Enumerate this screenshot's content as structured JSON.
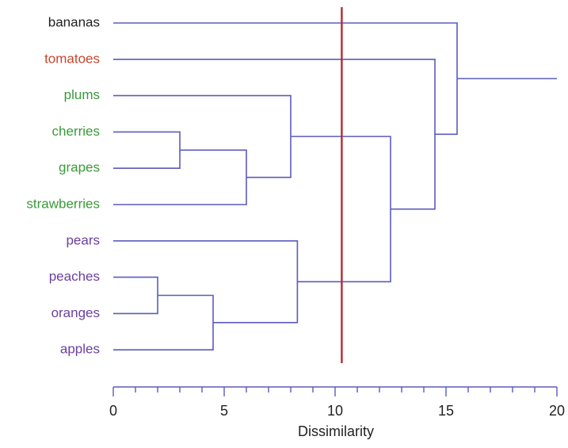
{
  "chart_data": {
    "type": "dendrogram",
    "xlabel": "Dissimilarity",
    "xlim": [
      0,
      20
    ],
    "major_ticks": [
      0,
      5,
      10,
      15,
      20
    ],
    "minor_tick_step": 1,
    "cut_line": {
      "value": 10.3,
      "color": "#b7282e"
    },
    "link_color": "#5b5bbd",
    "axis_color": "#5b5bbd",
    "root_extends_to": 20,
    "leaves": [
      {
        "label": "bananas",
        "color": "#222222"
      },
      {
        "label": "tomatoes",
        "color": "#c8452b"
      },
      {
        "label": "plums",
        "color": "#3a9a3a"
      },
      {
        "label": "cherries",
        "color": "#3a9a3a"
      },
      {
        "label": "grapes",
        "color": "#3a9a3a"
      },
      {
        "label": "strawberries",
        "color": "#3a9a3a"
      },
      {
        "label": "pears",
        "color": "#6b3fa0"
      },
      {
        "label": "peaches",
        "color": "#6b3fa0"
      },
      {
        "label": "oranges",
        "color": "#6b3fa0"
      },
      {
        "label": "apples",
        "color": "#6b3fa0"
      }
    ],
    "merges": [
      {
        "id": "m1",
        "a": "cherries",
        "b": "grapes",
        "height": 3
      },
      {
        "id": "m2",
        "a": "m1",
        "b": "strawberries",
        "height": 6
      },
      {
        "id": "m3",
        "a": "plums",
        "b": "m2",
        "height": 8
      },
      {
        "id": "m4",
        "a": "peaches",
        "b": "oranges",
        "height": 2
      },
      {
        "id": "m5",
        "a": "m4",
        "b": "apples",
        "height": 4.5
      },
      {
        "id": "m6",
        "a": "pears",
        "b": "m5",
        "height": 8.3
      },
      {
        "id": "m7",
        "a": "m3",
        "b": "m6",
        "height": 12.5
      },
      {
        "id": "m8",
        "a": "tomatoes",
        "b": "m7",
        "height": 14.5
      },
      {
        "id": "m9",
        "a": "bananas",
        "b": "m8",
        "height": 15.5
      }
    ]
  }
}
